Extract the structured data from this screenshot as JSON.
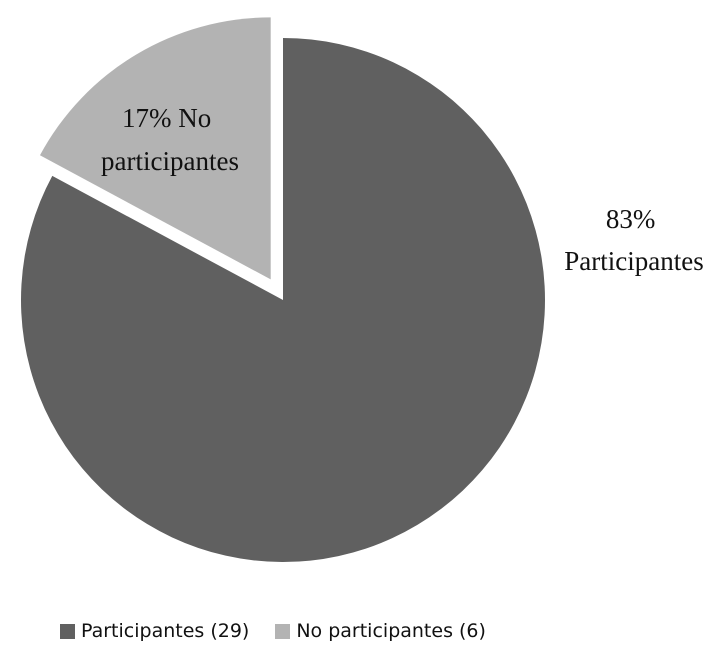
{
  "chart_data": {
    "type": "pie",
    "slices": [
      {
        "name": "Participantes",
        "count": 29,
        "percent": 83,
        "color": "#606060",
        "label_lines": [
          "83%",
          "Participantes"
        ],
        "legend_label": "Participantes (29)"
      },
      {
        "name": "No participantes",
        "count": 6,
        "percent": 17,
        "color": "#b3b3b3",
        "label_lines": [
          "17% No",
          "participantes"
        ],
        "legend_label": "No participantes (6)",
        "exploded": true
      }
    ],
    "legend_position": "bottom"
  }
}
